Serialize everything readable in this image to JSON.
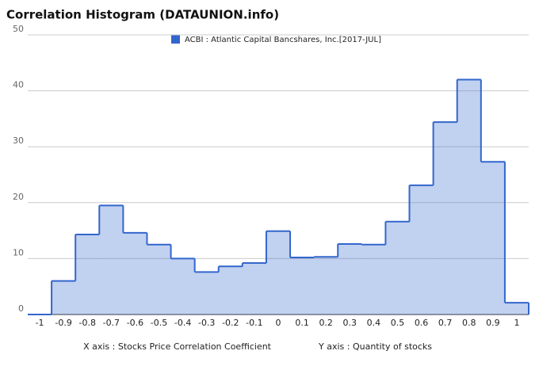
{
  "chart_data": {
    "type": "step-area",
    "title": "Correlation Histogram (DATAUNION.info)",
    "x_label": "X axis : Stocks Price Correlation Coefficient",
    "y_label": "Y axis : Quantity of stocks",
    "series": [
      {
        "name": "ACBI : Atlantic Capital Bancshares, Inc.[2017-JUL]",
        "color": "#3366cc",
        "values": [
          0,
          6,
          14.3,
          19.5,
          14.6,
          12.5,
          10,
          7.6,
          8.6,
          9.2,
          14.9,
          10.2,
          10.3,
          12.6,
          12.5,
          16.6,
          23.1,
          34.4,
          42,
          27.3,
          2.1
        ]
      }
    ],
    "x": [
      -1,
      -0.9,
      -0.8,
      -0.7,
      -0.6,
      -0.5,
      -0.4,
      -0.3,
      -0.2,
      -0.1,
      0,
      0.1,
      0.2,
      0.3,
      0.4,
      0.5,
      0.6,
      0.7,
      0.8,
      0.9,
      1
    ],
    "xlim": [
      -1.05,
      1.05
    ],
    "ylim": [
      0,
      50
    ],
    "yticks": [
      0,
      10,
      20,
      30,
      40,
      50
    ],
    "grid": true
  }
}
